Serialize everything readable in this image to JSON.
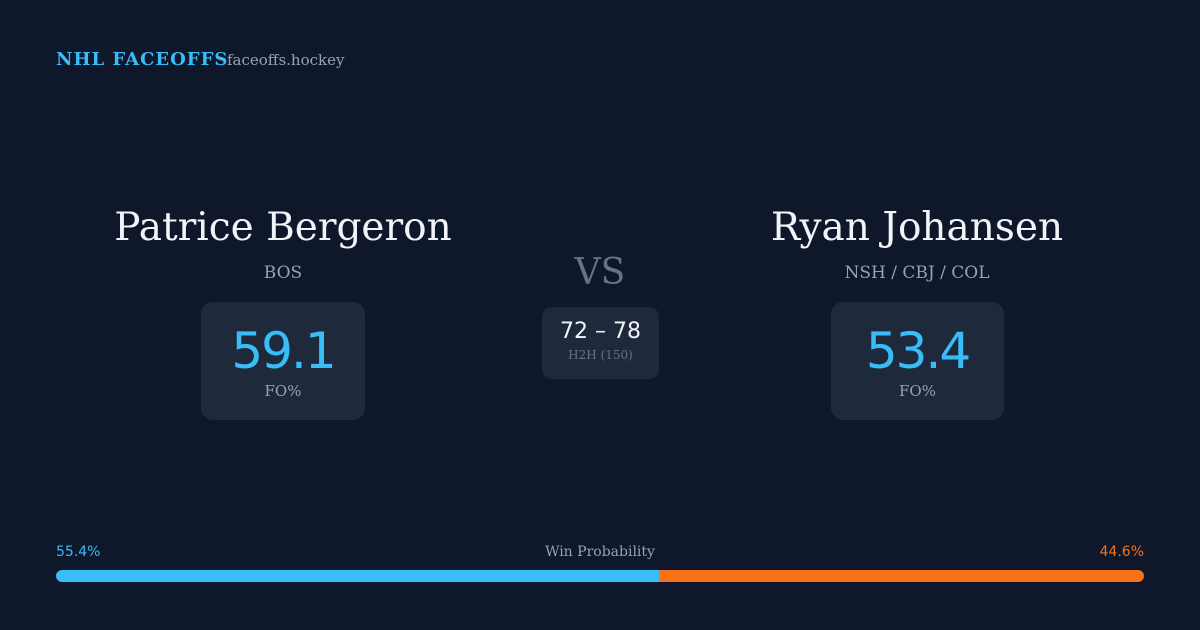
{
  "header": {
    "title": "NHL FACEOFFS",
    "site": "faceoffs.hockey"
  },
  "players": [
    {
      "name": "Patrice Bergeron",
      "team": "BOS",
      "fo_pct": 59.1,
      "fo_label": "FO%"
    },
    {
      "name": "Ryan Johansen",
      "team": "NSH / CBJ / COL",
      "fo_pct": 53.4,
      "fo_label": "FO%"
    }
  ],
  "vs": "VS",
  "h2h": {
    "score": "72 – 78",
    "label": "H2H (150)"
  },
  "win_probability": {
    "label": "Win Probability",
    "values": [
      55.4,
      44.6
    ],
    "value_labels": [
      "55.4%",
      "44.6%"
    ],
    "colors": [
      "#38bdf8",
      "#f97316"
    ]
  }
}
